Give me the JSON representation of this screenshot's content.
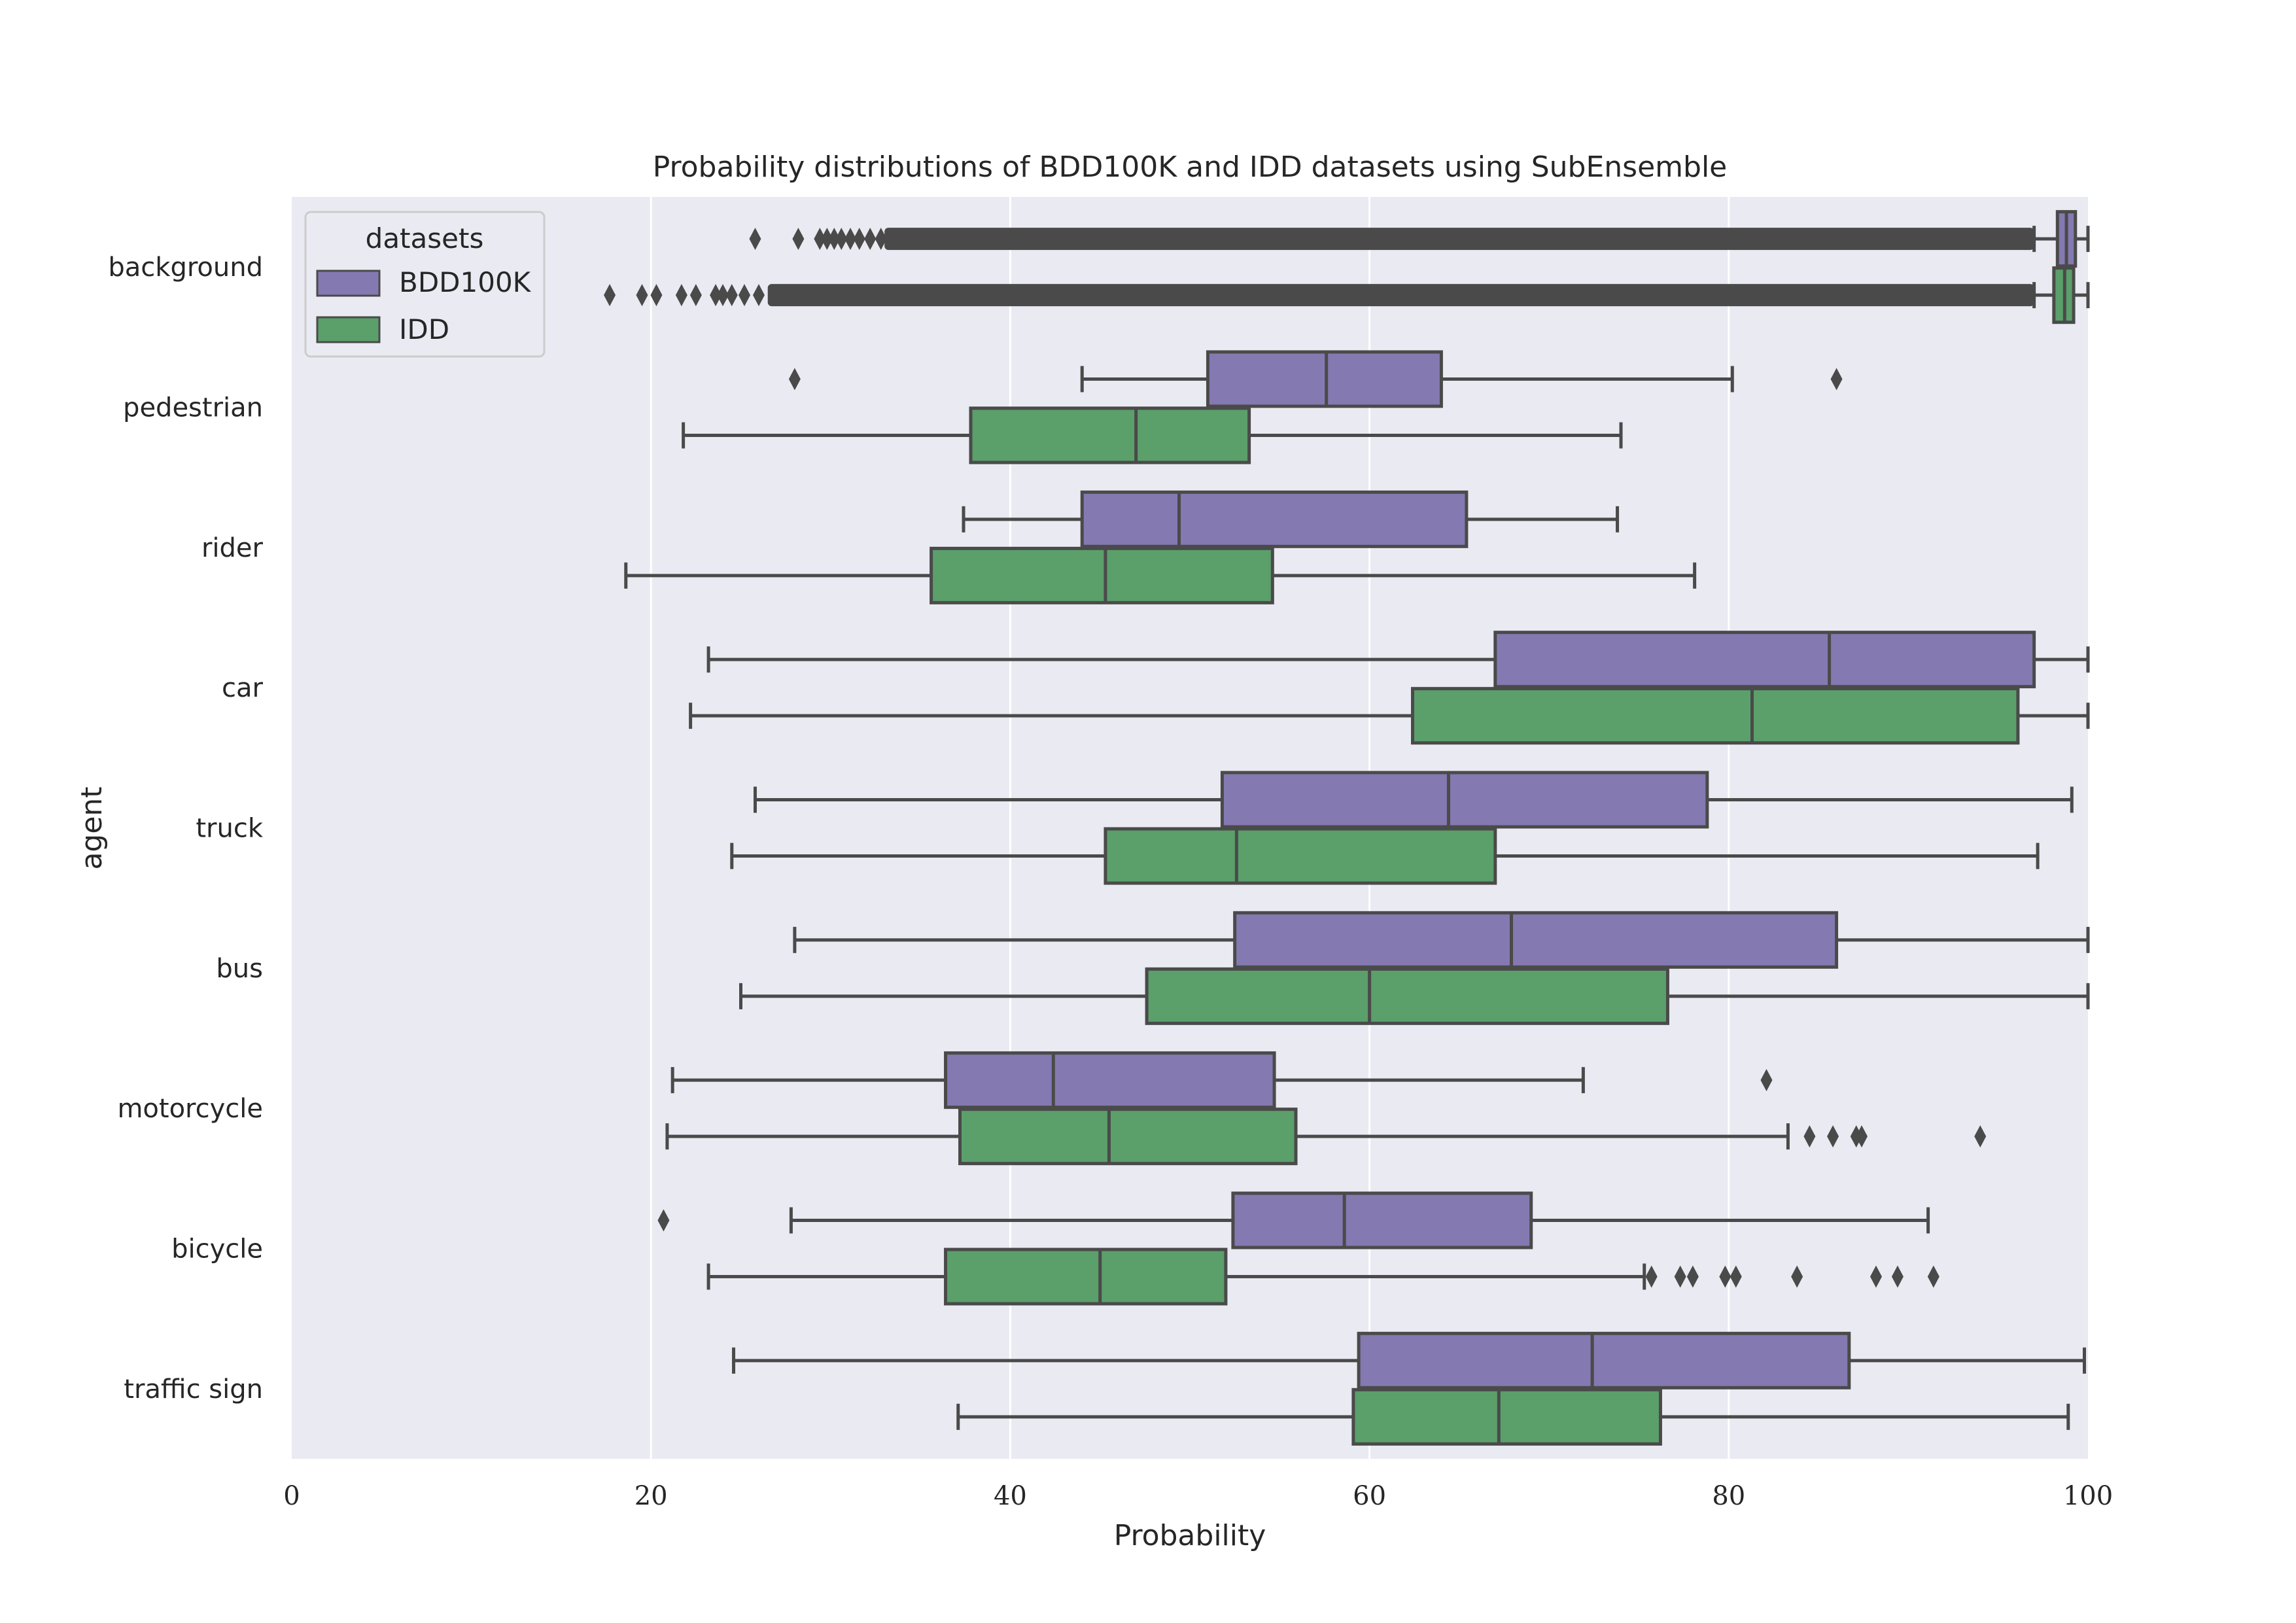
{
  "chart_data": {
    "type": "boxplot",
    "orientation": "horizontal",
    "title": "Probability distributions of BDD100K and IDD datasets using SubEnsemble",
    "xlabel": "Probability",
    "ylabel": "agent",
    "xlim": [
      0,
      100
    ],
    "xticks": [
      "0",
      "20",
      "40",
      "60",
      "80",
      "100"
    ],
    "grid": "vertical",
    "legend": {
      "title": "datasets",
      "placement": "top-left",
      "entries": [
        {
          "label": "BDD100K",
          "color": "#8579b1"
        },
        {
          "label": "IDD",
          "color": "#5b9f6a"
        }
      ]
    },
    "colors": {
      "BDD100K": "#8579b1",
      "IDD": "#5b9f6a",
      "line": "#4a4a4a",
      "plot_bg": "#eaeaf2",
      "grid": "#ffffff"
    },
    "categories": [
      "background",
      "pedestrian",
      "rider",
      "car",
      "truck",
      "bus",
      "motorcycle",
      "bicycle",
      "traffic sign"
    ],
    "series": [
      {
        "name": "BDD100K",
        "boxes": [
          {
            "whislo": 97.0,
            "q1": 98.3,
            "med": 98.8,
            "q3": 99.3,
            "whishi": 100.0,
            "fliers": [
              25.8,
              28.2,
              29.4,
              29.8,
              30.2,
              30.6,
              31.1,
              31.6,
              32.2,
              32.8
            ],
            "flier_band": [
              33.0,
              97.0
            ]
          },
          {
            "whislo": 44.0,
            "q1": 51.0,
            "med": 57.6,
            "q3": 64.0,
            "whishi": 80.2,
            "fliers": [
              28.0,
              86.0
            ]
          },
          {
            "whislo": 37.4,
            "q1": 44.0,
            "med": 49.4,
            "q3": 65.4,
            "whishi": 73.8,
            "fliers": []
          },
          {
            "whislo": 23.2,
            "q1": 67.0,
            "med": 85.6,
            "q3": 97.0,
            "whishi": 100.0,
            "fliers": []
          },
          {
            "whislo": 25.8,
            "q1": 51.8,
            "med": 64.4,
            "q3": 78.8,
            "whishi": 99.1,
            "fliers": []
          },
          {
            "whislo": 28.0,
            "q1": 52.5,
            "med": 67.9,
            "q3": 86.0,
            "whishi": 100.0,
            "fliers": []
          },
          {
            "whislo": 21.2,
            "q1": 36.4,
            "med": 42.4,
            "q3": 54.7,
            "whishi": 71.9,
            "fliers": [
              82.1
            ]
          },
          {
            "whislo": 27.8,
            "q1": 52.4,
            "med": 58.6,
            "q3": 69.0,
            "whishi": 91.1,
            "fliers": [
              20.7
            ]
          },
          {
            "whislo": 24.6,
            "q1": 59.4,
            "med": 72.4,
            "q3": 86.7,
            "whishi": 99.8,
            "fliers": []
          }
        ]
      },
      {
        "name": "IDD",
        "boxes": [
          {
            "whislo": 97.0,
            "q1": 98.1,
            "med": 98.7,
            "q3": 99.2,
            "whishi": 100.0,
            "fliers": [
              17.7,
              19.5,
              20.3,
              21.7,
              22.5,
              23.6,
              24.0,
              24.5,
              25.2,
              26.0
            ],
            "flier_band": [
              26.5,
              97.0
            ]
          },
          {
            "whislo": 21.8,
            "q1": 37.8,
            "med": 47.0,
            "q3": 53.3,
            "whishi": 74.0,
            "fliers": []
          },
          {
            "whislo": 18.6,
            "q1": 35.6,
            "med": 45.3,
            "q3": 54.6,
            "whishi": 78.1,
            "fliers": []
          },
          {
            "whislo": 22.2,
            "q1": 62.4,
            "med": 81.3,
            "q3": 96.1,
            "whishi": 100.0,
            "fliers": []
          },
          {
            "whislo": 24.5,
            "q1": 45.3,
            "med": 52.6,
            "q3": 67.0,
            "whishi": 97.2,
            "fliers": []
          },
          {
            "whislo": 25.0,
            "q1": 47.6,
            "med": 60.0,
            "q3": 76.6,
            "whishi": 100.0,
            "fliers": []
          },
          {
            "whislo": 20.9,
            "q1": 37.2,
            "med": 45.5,
            "q3": 55.9,
            "whishi": 83.3,
            "fliers": [
              84.5,
              85.8,
              87.1,
              87.4,
              94.0
            ]
          },
          {
            "whislo": 23.2,
            "q1": 36.4,
            "med": 45.0,
            "q3": 52.0,
            "whishi": 75.3,
            "fliers": [
              75.7,
              77.3,
              78.0,
              79.8,
              80.4,
              83.8,
              88.2,
              89.4,
              91.4
            ]
          },
          {
            "whislo": 37.1,
            "q1": 59.1,
            "med": 67.2,
            "q3": 76.2,
            "whishi": 98.9,
            "fliers": []
          }
        ]
      }
    ]
  }
}
